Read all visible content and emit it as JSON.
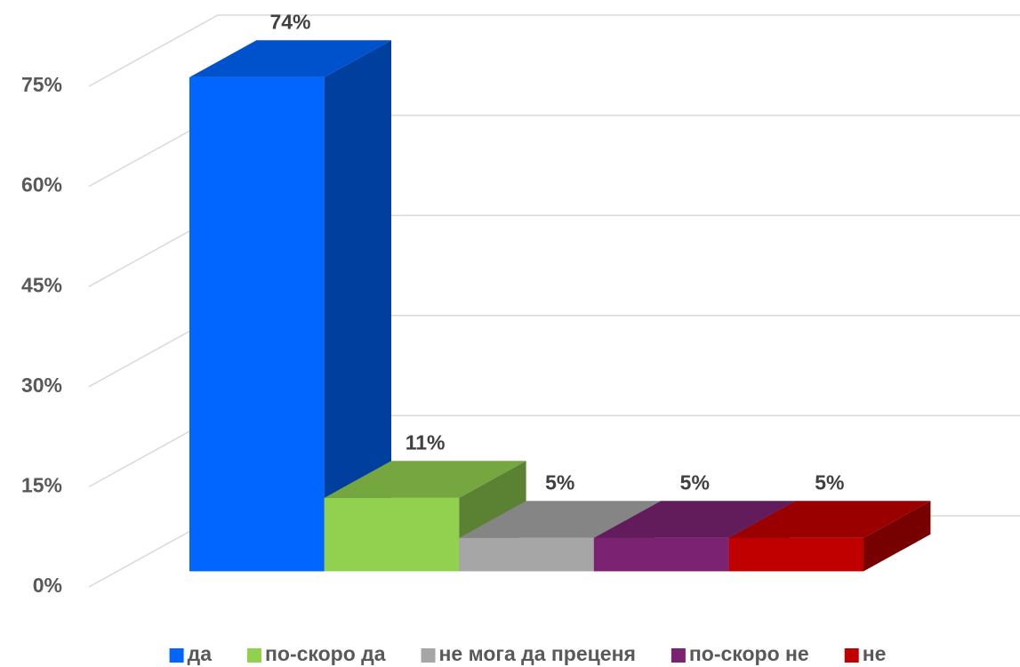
{
  "chart_data": {
    "type": "bar",
    "categories": [
      "да",
      "по-скоро да",
      "не мога да преценя",
      "по-скоро не",
      "не"
    ],
    "values": [
      74,
      11,
      5,
      5,
      5
    ],
    "value_labels": [
      "74%",
      "11%",
      "5%",
      "5%",
      "5%"
    ],
    "colors": [
      "#0066ff",
      "#92d050",
      "#a6a6a6",
      "#7b2272",
      "#c00000"
    ],
    "ylim": [
      0,
      75
    ],
    "yticks": [
      {
        "value": 0,
        "label": "0%"
      },
      {
        "value": 15,
        "label": "15%"
      },
      {
        "value": 30,
        "label": "30%"
      },
      {
        "value": 45,
        "label": "45%"
      },
      {
        "value": 60,
        "label": "60%"
      },
      {
        "value": 75,
        "label": "75%"
      }
    ],
    "grid": true,
    "legend": "bottom"
  }
}
